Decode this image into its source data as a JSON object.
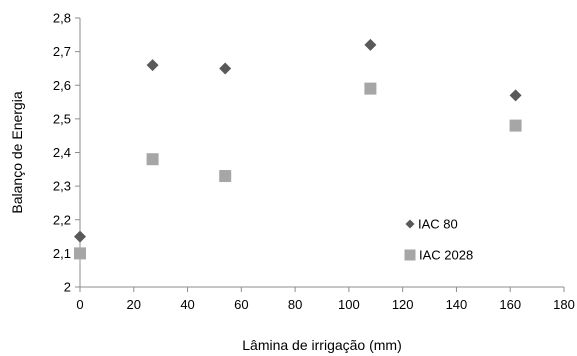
{
  "chart_data": {
    "type": "scatter",
    "xlabel": "Lâmina de irrigação (mm)",
    "ylabel": "Balanço de Energia",
    "xlim": [
      0,
      180
    ],
    "ylim": [
      2.0,
      2.8
    ],
    "x_ticks": [
      0,
      20,
      40,
      60,
      80,
      100,
      120,
      140,
      160,
      180
    ],
    "y_ticks": [
      2,
      2.1,
      2.2,
      2.3,
      2.4,
      2.5,
      2.6,
      2.7,
      2.8
    ],
    "y_tick_labels": [
      "2",
      "2,1",
      "2,2",
      "2,3",
      "2,4",
      "2,5",
      "2,6",
      "2,7",
      "2,8"
    ],
    "grid": false,
    "legend_position": "inside-right",
    "series": [
      {
        "name": "IAC 80",
        "marker": "diamond",
        "color": "#595959",
        "x": [
          0,
          27,
          54,
          108,
          162
        ],
        "y": [
          2.15,
          2.66,
          2.65,
          2.72,
          2.57
        ]
      },
      {
        "name": "IAC 2028",
        "marker": "square",
        "color": "#a6a6a6",
        "x": [
          0,
          27,
          54,
          108,
          162
        ],
        "y": [
          2.1,
          2.38,
          2.33,
          2.59,
          2.48
        ]
      }
    ]
  }
}
